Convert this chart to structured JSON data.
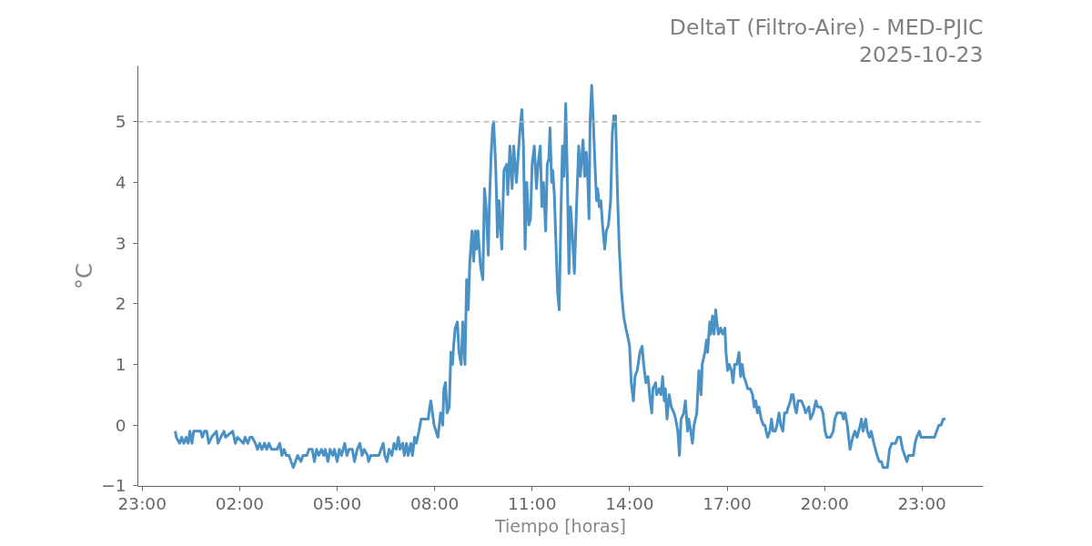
{
  "chart_data": {
    "type": "line",
    "title": "DeltaT (Filtro-Aire) - MED-PJIC",
    "subtitle": "2025-10-23",
    "xlabel": "Tiempo [horas]",
    "ylabel": "°C",
    "x": [
      "2025-10-23T00:01",
      "2025-10-23T00:03",
      "2025-10-23T00:09",
      "2025-10-23T00:13",
      "2025-10-23T00:17",
      "2025-10-23T00:21",
      "2025-10-23T00:25",
      "2025-10-23T00:28",
      "2025-10-23T00:32",
      "2025-10-23T00:35",
      "2025-10-23T00:48",
      "2025-10-23T00:51",
      "2025-10-23T00:55",
      "2025-10-23T00:59",
      "2025-10-23T01:03",
      "2025-10-23T01:08",
      "2025-10-23T01:17",
      "2025-10-23T01:20",
      "2025-10-23T01:25",
      "2025-10-23T01:31",
      "2025-10-23T01:34",
      "2025-10-23T01:47",
      "2025-10-23T01:52",
      "2025-10-23T01:56",
      "2025-10-23T02:07",
      "2025-10-23T02:10",
      "2025-10-23T02:15",
      "2025-10-23T02:19",
      "2025-10-23T02:23",
      "2025-10-23T02:29",
      "2025-10-23T02:33",
      "2025-10-23T02:37",
      "2025-10-23T02:41",
      "2025-10-23T02:46",
      "2025-10-23T02:50",
      "2025-10-23T02:54",
      "2025-10-23T02:59",
      "2025-10-23T03:09",
      "2025-10-23T03:14",
      "2025-10-23T03:18",
      "2025-10-23T03:22",
      "2025-10-23T03:26",
      "2025-10-23T03:31",
      "2025-10-23T03:35",
      "2025-10-23T03:39",
      "2025-10-23T03:43",
      "2025-10-23T03:47",
      "2025-10-23T03:53",
      "2025-10-23T03:57",
      "2025-10-23T04:04",
      "2025-10-23T04:08",
      "2025-10-23T04:14",
      "2025-10-23T04:18",
      "2025-10-23T04:22",
      "2025-10-23T04:26",
      "2025-10-23T04:31",
      "2025-10-23T04:35",
      "2025-10-23T04:38",
      "2025-10-23T04:43",
      "2025-10-23T04:47",
      "2025-10-23T04:52",
      "2025-10-23T04:55",
      "2025-10-23T05:00",
      "2025-10-23T05:04",
      "2025-10-23T05:08",
      "2025-10-23T05:14",
      "2025-10-23T05:18",
      "2025-10-23T05:22",
      "2025-10-23T05:28",
      "2025-10-23T05:32",
      "2025-10-23T05:37",
      "2025-10-23T05:42",
      "2025-10-23T05:46",
      "2025-10-23T05:50",
      "2025-10-23T05:56",
      "2025-10-23T05:58",
      "2025-10-23T06:02",
      "2025-10-23T06:17",
      "2025-10-23T06:21",
      "2025-10-23T06:25",
      "2025-10-23T06:28",
      "2025-10-23T06:32",
      "2025-10-23T06:36",
      "2025-10-23T06:41",
      "2025-10-23T06:45",
      "2025-10-23T06:49",
      "2025-10-23T06:53",
      "2025-10-23T06:56",
      "2025-10-23T07:01",
      "2025-10-23T07:04",
      "2025-10-23T07:08",
      "2025-10-23T07:11",
      "2025-10-23T07:16",
      "2025-10-23T07:19",
      "2025-10-23T07:23",
      "2025-10-23T07:26",
      "2025-10-23T07:31",
      "2025-10-23T07:35",
      "2025-10-23T07:48",
      "2025-10-23T07:51",
      "2025-10-23T07:53",
      "2025-10-23T07:59",
      "2025-10-23T08:06",
      "2025-10-23T08:11",
      "2025-10-23T08:15",
      "2025-10-23T08:17",
      "2025-10-23T08:20",
      "2025-10-23T08:23",
      "2025-10-23T08:27",
      "2025-10-23T08:30",
      "2025-10-23T08:33",
      "2025-10-23T08:35",
      "2025-10-23T08:38",
      "2025-10-23T08:42",
      "2025-10-23T08:45",
      "2025-10-23T08:49",
      "2025-10-23T08:52",
      "2025-10-23T08:56",
      "2025-10-23T08:59",
      "2025-10-23T09:02",
      "2025-10-23T09:05",
      "2025-10-23T09:09",
      "2025-10-23T09:12",
      "2025-10-23T09:15",
      "2025-10-23T09:17",
      "2025-10-23T09:20",
      "2025-10-23T09:25",
      "2025-10-23T09:29",
      "2025-10-23T09:32",
      "2025-10-23T09:35",
      "2025-10-23T09:39",
      "2025-10-23T09:41",
      "2025-10-23T09:44",
      "2025-10-23T09:47",
      "2025-10-23T09:49",
      "2025-10-23T09:53",
      "2025-10-23T09:56",
      "2025-10-23T09:59",
      "2025-10-23T10:04",
      "2025-10-23T10:08",
      "2025-10-23T10:13",
      "2025-10-23T10:15",
      "2025-10-23T10:19",
      "2025-10-23T10:23",
      "2025-10-23T10:26",
      "2025-10-23T10:31",
      "2025-10-23T10:34",
      "2025-10-23T10:37",
      "2025-10-23T10:41",
      "2025-10-23T10:44",
      "2025-10-23T10:47",
      "2025-10-23T10:50",
      "2025-10-23T10:54",
      "2025-10-23T10:57",
      "2025-10-23T11:00",
      "2025-10-23T11:04",
      "2025-10-23T11:08",
      "2025-10-23T11:11",
      "2025-10-23T11:15",
      "2025-10-23T11:18",
      "2025-10-23T11:21",
      "2025-10-23T11:25",
      "2025-10-23T11:28",
      "2025-10-23T11:31",
      "2025-10-23T11:33",
      "2025-10-23T11:36",
      "2025-10-23T11:38",
      "2025-10-23T11:41",
      "2025-10-23T11:44",
      "2025-10-23T11:47",
      "2025-10-23T11:50",
      "2025-10-23T11:53",
      "2025-10-23T11:56",
      "2025-10-23T11:59",
      "2025-10-23T12:02",
      "2025-10-23T12:05",
      "2025-10-23T12:08",
      "2025-10-23T12:11",
      "2025-10-23T12:14",
      "2025-10-23T12:18",
      "2025-10-23T12:22",
      "2025-10-23T12:26",
      "2025-10-23T12:29",
      "2025-10-23T12:34",
      "2025-10-23T12:37",
      "2025-10-23T12:40",
      "2025-10-23T12:43",
      "2025-10-23T12:45",
      "2025-10-23T12:47",
      "2025-10-23T12:50",
      "2025-10-23T12:53",
      "2025-10-23T12:56",
      "2025-10-23T12:59",
      "2025-10-23T13:01",
      "2025-10-23T13:04",
      "2025-10-23T13:07",
      "2025-10-23T13:10",
      "2025-10-23T13:14",
      "2025-10-23T13:17",
      "2025-10-23T13:21",
      "2025-10-23T13:25",
      "2025-10-23T13:28",
      "2025-10-23T13:31",
      "2025-10-23T13:34",
      "2025-10-23T13:38",
      "2025-10-23T13:41",
      "2025-10-23T13:45",
      "2025-10-23T13:49",
      "2025-10-23T13:53",
      "2025-10-23T13:58",
      "2025-10-23T14:00",
      "2025-10-23T14:03",
      "2025-10-23T14:07",
      "2025-10-23T14:10",
      "2025-10-23T14:14",
      "2025-10-23T14:19",
      "2025-10-23T14:23",
      "2025-10-23T14:26",
      "2025-10-23T14:30",
      "2025-10-23T14:34",
      "2025-10-23T14:38",
      "2025-10-23T14:41",
      "2025-10-23T14:43",
      "2025-10-23T14:48",
      "2025-10-23T14:50",
      "2025-10-23T14:55",
      "2025-10-23T14:58",
      "2025-10-23T15:01",
      "2025-10-23T15:04",
      "2025-10-23T15:06",
      "2025-10-23T15:09",
      "2025-10-23T15:13",
      "2025-10-23T15:17",
      "2025-10-23T15:22",
      "2025-10-23T15:25",
      "2025-10-23T15:29",
      "2025-10-23T15:32",
      "2025-10-23T15:35",
      "2025-10-23T15:40",
      "2025-10-23T15:43",
      "2025-10-23T15:47",
      "2025-10-23T15:49",
      "2025-10-23T15:53",
      "2025-10-23T15:56",
      "2025-10-23T15:59",
      "2025-10-23T16:04",
      "2025-10-23T16:08",
      "2025-10-23T16:12",
      "2025-10-23T16:14",
      "2025-10-23T16:19",
      "2025-10-23T16:22",
      "2025-10-23T16:24",
      "2025-10-23T16:28",
      "2025-10-23T16:30",
      "2025-10-23T16:33",
      "2025-10-23T16:36",
      "2025-10-23T16:39",
      "2025-10-23T16:41",
      "2025-10-23T16:44",
      "2025-10-23T16:48",
      "2025-10-23T16:52",
      "2025-10-23T16:56",
      "2025-10-23T16:58",
      "2025-10-23T17:01",
      "2025-10-23T17:04",
      "2025-10-23T17:08",
      "2025-10-23T17:11",
      "2025-10-23T17:14",
      "2025-10-23T17:18",
      "2025-10-23T17:22",
      "2025-10-23T17:25",
      "2025-10-23T17:28",
      "2025-10-23T17:31",
      "2025-10-23T17:35",
      "2025-10-23T17:38",
      "2025-10-23T17:43",
      "2025-10-23T17:47",
      "2025-10-23T17:50",
      "2025-10-23T17:53",
      "2025-10-23T17:56",
      "2025-10-23T17:59",
      "2025-10-23T18:03",
      "2025-10-23T18:07",
      "2025-10-23T18:10",
      "2025-10-23T18:12",
      "2025-10-23T18:15",
      "2025-10-23T18:19",
      "2025-10-23T18:22",
      "2025-10-23T18:25",
      "2025-10-23T18:29",
      "2025-10-23T18:32",
      "2025-10-23T18:36",
      "2025-10-23T18:39",
      "2025-10-23T18:43",
      "2025-10-23T18:46",
      "2025-10-23T18:50",
      "2025-10-23T18:53",
      "2025-10-23T18:57",
      "2025-10-23T18:59",
      "2025-10-23T19:02",
      "2025-10-23T19:05",
      "2025-10-23T19:08",
      "2025-10-23T19:11",
      "2025-10-23T19:15",
      "2025-10-23T19:17",
      "2025-10-23T19:22",
      "2025-10-23T19:25",
      "2025-10-23T19:31",
      "2025-10-23T19:34",
      "2025-10-23T19:39",
      "2025-10-23T19:44",
      "2025-10-23T19:47",
      "2025-10-23T19:53",
      "2025-10-23T19:57",
      "2025-10-23T20:01",
      "2025-10-23T20:04",
      "2025-10-23T20:11",
      "2025-10-23T20:16",
      "2025-10-23T20:19",
      "2025-10-23T20:23",
      "2025-10-23T20:32",
      "2025-10-23T20:35",
      "2025-10-23T20:38",
      "2025-10-23T20:42",
      "2025-10-23T20:47",
      "2025-10-23T20:52",
      "2025-10-23T20:56",
      "2025-10-23T21:00",
      "2025-10-23T21:06",
      "2025-10-23T21:08",
      "2025-10-23T21:11",
      "2025-10-23T21:16",
      "2025-10-23T21:19",
      "2025-10-23T21:23",
      "2025-10-23T21:26",
      "2025-10-23T21:31",
      "2025-10-23T21:37",
      "2025-10-23T21:41",
      "2025-10-23T21:45",
      "2025-10-23T21:48",
      "2025-10-23T21:56",
      "2025-10-23T22:00",
      "2025-10-23T22:04",
      "2025-10-23T22:11",
      "2025-10-23T22:15",
      "2025-10-23T22:20",
      "2025-10-23T22:24",
      "2025-10-23T22:28",
      "2025-10-23T22:32",
      "2025-10-23T22:35",
      "2025-10-23T22:44",
      "2025-10-23T22:47",
      "2025-10-23T22:50",
      "2025-10-23T22:55",
      "2025-10-23T22:58",
      "2025-10-23T23:23",
      "2025-10-23T23:27",
      "2025-10-23T23:31",
      "2025-10-23T23:35",
      "2025-10-23T23:39",
      "2025-10-23T23:43"
    ],
    "series": [
      {
        "color": "#4a91c5",
        "values": [
          -0.1,
          -0.2,
          -0.3,
          -0.2,
          -0.3,
          -0.2,
          -0.3,
          -0.1,
          -0.3,
          -0.1,
          -0.1,
          -0.2,
          -0.1,
          -0.1,
          -0.3,
          -0.2,
          -0.1,
          -0.3,
          -0.2,
          -0.1,
          -0.2,
          -0.1,
          -0.3,
          -0.2,
          -0.3,
          -0.2,
          -0.3,
          -0.2,
          -0.2,
          -0.3,
          -0.4,
          -0.3,
          -0.4,
          -0.3,
          -0.4,
          -0.3,
          -0.4,
          -0.4,
          -0.3,
          -0.5,
          -0.4,
          -0.5,
          -0.5,
          -0.6,
          -0.7,
          -0.6,
          -0.5,
          -0.6,
          -0.5,
          -0.5,
          -0.4,
          -0.4,
          -0.6,
          -0.4,
          -0.5,
          -0.4,
          -0.5,
          -0.4,
          -0.6,
          -0.4,
          -0.5,
          -0.4,
          -0.6,
          -0.4,
          -0.5,
          -0.3,
          -0.5,
          -0.4,
          -0.4,
          -0.6,
          -0.4,
          -0.3,
          -0.5,
          -0.4,
          -0.5,
          -0.6,
          -0.5,
          -0.5,
          -0.4,
          -0.3,
          -0.5,
          -0.6,
          -0.4,
          -0.5,
          -0.3,
          -0.4,
          -0.2,
          -0.4,
          -0.3,
          -0.5,
          -0.3,
          -0.5,
          -0.3,
          -0.5,
          -0.2,
          -0.3,
          -0.1,
          0.1,
          0.1,
          0.3,
          0.4,
          0.0,
          -0.2,
          0.2,
          0.0,
          0.6,
          0.7,
          0.2,
          0.3,
          1.2,
          1.0,
          1.3,
          1.6,
          1.7,
          1.2,
          1.0,
          1.7,
          1.0,
          2.4,
          1.9,
          2.7,
          3.2,
          2.7,
          3.2,
          2.9,
          3.2,
          2.6,
          2.4,
          3.9,
          3.6,
          2.8,
          3.6,
          4.4,
          4.9,
          5.0,
          4.2,
          3.1,
          3.7,
          2.9,
          4.2,
          4.3,
          3.8,
          4.6,
          3.9,
          4.6,
          4.0,
          4.4,
          4.8,
          5.2,
          4.6,
          2.9,
          4.0,
          3.3,
          3.4,
          4.3,
          4.6,
          3.9,
          4.3,
          4.6,
          3.6,
          4.0,
          3.2,
          4.3,
          4.4,
          4.9,
          4.0,
          4.2,
          3.8,
          3.0,
          2.2,
          1.9,
          3.4,
          4.6,
          4.1,
          5.3,
          4.1,
          2.5,
          3.6,
          3.2,
          2.5,
          3.6,
          4.6,
          4.1,
          4.7,
          4.1,
          4.5,
          4.0,
          3.4,
          5.0,
          5.6,
          5.0,
          4.3,
          3.7,
          3.9,
          3.6,
          3.7,
          3.3,
          2.9,
          3.2,
          3.3,
          3.7,
          4.8,
          5.1,
          5.1,
          3.7,
          2.9,
          2.2,
          1.8,
          1.6,
          1.4,
          1.3,
          0.7,
          0.4,
          0.8,
          0.9,
          1.2,
          1.3,
          1.0,
          0.7,
          0.8,
          0.4,
          0.2,
          0.6,
          0.7,
          0.5,
          0.6,
          0.5,
          0.8,
          0.4,
          0.6,
          0.1,
          0.5,
          0.3,
          0.2,
          0.1,
          -0.1,
          -0.5,
          0.1,
          0.2,
          0.4,
          -0.1,
          0.1,
          -0.1,
          -0.3,
          0.0,
          0.2,
          0.9,
          0.5,
          1.0,
          1.2,
          1.4,
          1.2,
          1.7,
          1.5,
          1.8,
          1.5,
          1.9,
          1.7,
          1.5,
          1.6,
          1.5,
          1.6,
          1.2,
          0.9,
          1.0,
          0.9,
          0.7,
          1.0,
          1.0,
          1.2,
          0.8,
          1.0,
          0.8,
          0.7,
          0.6,
          0.6,
          0.5,
          0.3,
          0.4,
          0.2,
          0.3,
          0.1,
          0.0,
          0.0,
          -0.1,
          -0.2,
          -0.1,
          0.1,
          -0.1,
          -0.1,
          0.0,
          0.2,
          0.0,
          -0.1,
          0.2,
          0.2,
          0.3,
          0.4,
          0.5,
          0.5,
          0.3,
          0.2,
          0.4,
          0.4,
          0.4,
          0.3,
          0.2,
          0.3,
          0.1,
          0.2,
          0.4,
          0.3,
          0.3,
          0.2,
          -0.1,
          -0.2,
          -0.2,
          -0.1,
          0.1,
          0.2,
          0.2,
          0.1,
          0.2,
          0.0,
          -0.4,
          -0.2,
          -0.1,
          -0.2,
          0.0,
          0.1,
          -0.1,
          0.1,
          -0.1,
          -0.2,
          -0.1,
          -0.3,
          -0.5,
          -0.6,
          -0.6,
          -0.7,
          -0.7,
          -0.4,
          -0.3,
          -0.3,
          -0.2,
          -0.2,
          -0.4,
          -0.5,
          -0.6,
          -0.5,
          -0.5,
          -0.3,
          -0.2,
          -0.1,
          -0.2,
          -0.2,
          -0.1,
          0.0,
          0.0,
          0.1,
          0.1
        ]
      }
    ],
    "xlim": [
      "2025-10-22T22:52",
      "2025-10-24T00:53"
    ],
    "ylim": [
      -1.01,
      5.92
    ],
    "xticks": [
      {
        "value": "2025-10-22T23:00",
        "label": "23:00"
      },
      {
        "value": "2025-10-23T02:00",
        "label": "02:00"
      },
      {
        "value": "2025-10-23T05:00",
        "label": "05:00"
      },
      {
        "value": "2025-10-23T08:00",
        "label": "08:00"
      },
      {
        "value": "2025-10-23T11:00",
        "label": "11:00"
      },
      {
        "value": "2025-10-23T14:00",
        "label": "14:00"
      },
      {
        "value": "2025-10-23T17:00",
        "label": "17:00"
      },
      {
        "value": "2025-10-23T20:00",
        "label": "20:00"
      },
      {
        "value": "2025-10-23T23:00",
        "label": "23:00"
      }
    ],
    "yticks": [
      {
        "value": -1,
        "label": "−1"
      },
      0,
      1,
      2,
      3,
      4,
      5
    ],
    "ref_lines": [
      {
        "axis": "y",
        "value": 5,
        "color": "#bbbbbb",
        "line_style": "dashed"
      }
    ],
    "line_style": "solid",
    "grid": false
  }
}
